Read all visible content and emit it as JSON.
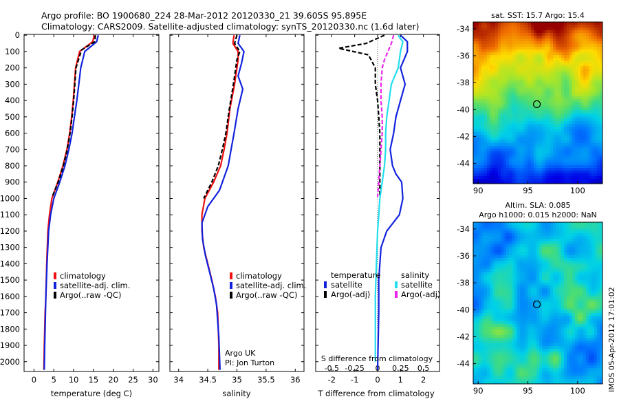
{
  "header": {
    "line1": "Argo profile: BO 1900680_224 28-Mar-2012 20120330_21 39.605S 95.895E",
    "line2": "Climatology: CARS2009. Satellite-adjusted climatology: synTS_20120330.nc (1.6d later)"
  },
  "colors": {
    "climatology": "#ee1111",
    "satellite_temp": "#1122dd",
    "argo": "#000000",
    "satellite_sal": "#22ddee",
    "argo_sal": "#ee22ee"
  },
  "depth_ticks": [
    0,
    100,
    200,
    300,
    400,
    500,
    600,
    700,
    800,
    900,
    1000,
    1100,
    1200,
    1300,
    1400,
    1500,
    1600,
    1700,
    1800,
    1900,
    2000
  ],
  "legend_profile": {
    "climatology": "climatology",
    "satellite": "satellite-adj. clim.",
    "argo": "Argo(..raw -QC)"
  },
  "credits": {
    "line1": "Argo UK",
    "line2": "PI: Jon Turton"
  },
  "legend_diff": {
    "temp_title": "temperature",
    "sal_title": "salinity",
    "satellite": "satellite",
    "argo": "Argo(-adj)"
  },
  "sst_title": "sat. SST: 15.7 Argo: 15.4",
  "sla_title1": "Altim. SLA: 0.085",
  "sla_title2": "Argo h1000: 0.015 h2000: NaN",
  "timestamp": "IMOS 05-Apr-2012 17:01:02",
  "chart_data": [
    {
      "type": "line",
      "xlabel": "temperature (deg C)",
      "ylabel": "",
      "xlim": [
        -2.5,
        31.5
      ],
      "ylim": [
        2060,
        -5
      ],
      "xticks": [
        0,
        5,
        10,
        15,
        20,
        25,
        30
      ],
      "xtick_labels": [
        "0",
        "5",
        "10",
        "15",
        "20",
        "25",
        "30"
      ],
      "series": [
        {
          "name": "climatology",
          "color": "#ee1111",
          "x": [
            15.2,
            14.8,
            11.5,
            10.5,
            10.2,
            9.9,
            9.5,
            9.0,
            8.3,
            7.3,
            6.0,
            4.5,
            3.9,
            3.5,
            3.2,
            3.0,
            2.8,
            2.7,
            2.6,
            2.5
          ],
          "y": [
            0,
            40,
            100,
            200,
            300,
            400,
            500,
            600,
            700,
            800,
            900,
            1000,
            1100,
            1200,
            1400,
            1600,
            1700,
            1800,
            1900,
            2050
          ]
        },
        {
          "name": "satellite-adj. clim.",
          "color": "#1122dd",
          "x": [
            16.2,
            15.8,
            12.8,
            11.8,
            11.3,
            10.8,
            10.2,
            9.6,
            8.8,
            7.8,
            6.5,
            5.0,
            4.2,
            3.7,
            3.3,
            3.0,
            2.9,
            2.8,
            2.7,
            2.6
          ],
          "y": [
            0,
            40,
            100,
            200,
            300,
            400,
            500,
            600,
            700,
            800,
            900,
            1000,
            1100,
            1200,
            1400,
            1600,
            1700,
            1800,
            1900,
            2050
          ]
        },
        {
          "name": "Argo(..raw -QC)",
          "color": "#000000",
          "dash": true,
          "x": [
            15.5,
            15.3,
            12.0,
            10.6,
            10.3,
            10.0,
            9.6,
            9.1,
            8.4,
            7.4,
            6.1,
            4.6
          ],
          "y": [
            0,
            40,
            90,
            200,
            300,
            400,
            500,
            600,
            700,
            800,
            900,
            990
          ]
        }
      ]
    },
    {
      "type": "line",
      "xlabel": "salinity",
      "ylabel": "",
      "xlim": [
        33.85,
        36.15
      ],
      "ylim": [
        2060,
        -5
      ],
      "xticks": [
        34,
        34.5,
        35,
        35.5,
        36
      ],
      "xtick_labels": [
        "34",
        "34.5",
        "35",
        "35.5",
        "36"
      ],
      "series": [
        {
          "name": "climatology",
          "color": "#ee1111",
          "x": [
            34.95,
            34.93,
            35.02,
            35.02,
            34.96,
            34.88,
            34.83,
            34.78,
            34.72,
            34.6,
            34.45,
            34.4,
            34.4,
            34.43,
            34.5,
            34.57,
            34.63,
            34.67,
            34.69,
            34.69
          ],
          "y": [
            0,
            50,
            100,
            150,
            300,
            450,
            600,
            700,
            800,
            900,
            1000,
            1100,
            1200,
            1300,
            1400,
            1500,
            1600,
            1700,
            1900,
            2050
          ]
        },
        {
          "name": "satellite-adj. clim.",
          "color": "#1122dd",
          "x": [
            35.05,
            35.02,
            35.12,
            35.08,
            35.02,
            35.1,
            35.02,
            34.95,
            34.9,
            34.85,
            34.7,
            34.5,
            34.4,
            34.41,
            34.46,
            34.53,
            34.6,
            34.65,
            34.69,
            34.71
          ],
          "y": [
            0,
            50,
            100,
            170,
            250,
            330,
            450,
            600,
            700,
            800,
            950,
            1050,
            1150,
            1250,
            1350,
            1450,
            1550,
            1650,
            1850,
            2050
          ]
        },
        {
          "name": "Argo(..raw -QC)",
          "color": "#000000",
          "dash": true,
          "x": [
            35.0,
            34.96,
            35.05,
            35.0,
            34.94,
            34.87,
            34.81,
            34.75,
            34.68,
            34.57,
            34.43
          ],
          "y": [
            0,
            50,
            100,
            150,
            300,
            450,
            600,
            700,
            800,
            900,
            1000
          ]
        }
      ]
    },
    {
      "type": "line",
      "xlabel": "T difference from climatology",
      "ylabel": "",
      "xlim": [
        -2.7,
        2.7
      ],
      "ylim": [
        2060,
        -5
      ],
      "xticks": [
        -2,
        -1,
        0,
        1,
        2
      ],
      "xtick_labels": [
        "-2",
        "-1",
        "0",
        "1",
        "2"
      ],
      "top_axis_label": "S difference from climatology",
      "top_ticks": [
        -0.5,
        -0.25,
        0,
        0.25,
        0.5
      ],
      "top_tick_labels": [
        "-0.5",
        "-0.25",
        "0",
        "0.25",
        "0.5"
      ],
      "series": [
        {
          "name": "temperature satellite",
          "color": "#1122dd",
          "x": [
            1.0,
            1.3,
            1.3,
            1.0,
            1.2,
            1.0,
            0.8,
            0.7,
            0.55,
            0.65,
            0.8,
            1.05,
            1.1,
            0.95,
            0.4,
            0.15,
            0.1,
            0.05,
            0.05,
            0.02,
            0.0
          ],
          "y": [
            0,
            40,
            100,
            200,
            300,
            400,
            500,
            600,
            700,
            800,
            850,
            900,
            1000,
            1100,
            1200,
            1300,
            1400,
            1500,
            1700,
            1900,
            2050
          ]
        },
        {
          "name": "temperature Argo(-adj)",
          "color": "#000000",
          "dash": true,
          "x": [
            0.3,
            -0.5,
            -1.7,
            -0.4,
            -0.1,
            -0.1,
            0.0,
            0.05,
            0.1,
            0.1,
            0.1,
            0.1
          ],
          "y": [
            0,
            50,
            80,
            120,
            200,
            300,
            400,
            500,
            600,
            700,
            800,
            990
          ]
        },
        {
          "name": "salinity satellite",
          "color": "#22ddee",
          "x": [
            0.9,
            1.1,
            1.0,
            0.9,
            0.6,
            0.5,
            0.4,
            0.35,
            0.35,
            0.3,
            0.2,
            0.1,
            0.05,
            0.0,
            -0.05,
            -0.1,
            -0.1,
            -0.1
          ],
          "y": [
            0,
            40,
            100,
            200,
            300,
            400,
            500,
            600,
            700,
            800,
            900,
            1000,
            1100,
            1200,
            1400,
            1600,
            1800,
            2000
          ]
        },
        {
          "name": "salinity Argo(-adj)",
          "color": "#ee22ee",
          "dash": true,
          "x": [
            0.7,
            0.6,
            0.3,
            0.2,
            0.15,
            0.15,
            0.2,
            0.2,
            0.15,
            0.1,
            0.05,
            0.0
          ],
          "y": [
            0,
            50,
            150,
            200,
            300,
            400,
            500,
            600,
            700,
            800,
            900,
            990
          ]
        }
      ]
    },
    {
      "type": "heatmap",
      "title": "sat. SST: 15.7 Argo: 15.4",
      "xlim": [
        89.5,
        102.5
      ],
      "ylim": [
        -45.5,
        -33.5
      ],
      "xticks": [
        90,
        95,
        100
      ],
      "yticks": [
        -34,
        -36,
        -38,
        -40,
        -42,
        -44
      ],
      "marker": {
        "x": 95.9,
        "y": -39.6
      }
    },
    {
      "type": "heatmap",
      "title": "Altim. SLA: 0.085",
      "xlim": [
        89.5,
        102.5
      ],
      "ylim": [
        -45.5,
        -33.5
      ],
      "xticks": [
        90,
        95,
        100
      ],
      "yticks": [
        -34,
        -36,
        -38,
        -40,
        -42,
        -44
      ],
      "marker": {
        "x": 95.9,
        "y": -39.6
      }
    }
  ]
}
